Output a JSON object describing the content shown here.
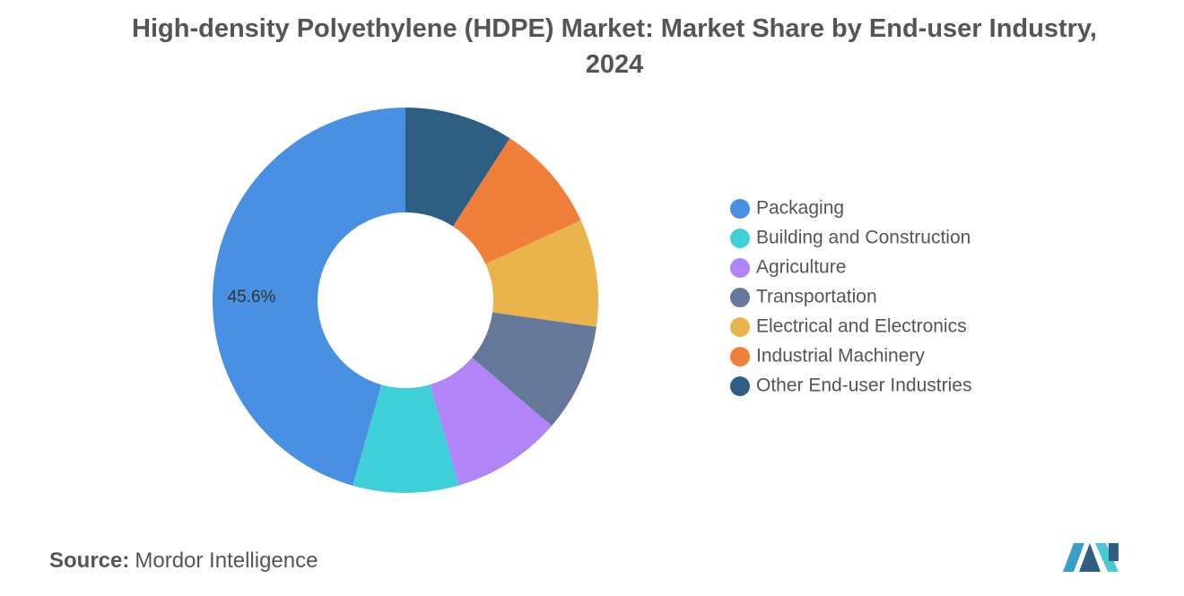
{
  "chart_data": {
    "type": "donut",
    "title": "High-density Polyethylene (HDPE) Market: Market Share by End-user Industry, 2024",
    "categories": [
      "Packaging",
      "Building and Construction",
      "Agriculture",
      "Transportation",
      "Electrical and Electronics",
      "Industrial Machinery",
      "Other End-user Industries"
    ],
    "values": [
      45.6,
      8.9,
      9.2,
      9.1,
      9.0,
      9.1,
      9.1
    ],
    "value_labels": [
      "45.6%",
      null,
      null,
      null,
      null,
      null,
      null
    ],
    "colors": [
      "#4a90e2",
      "#3ecfd8",
      "#b184f7",
      "#66789a",
      "#e9b44c",
      "#f07f3c",
      "#2e5e82"
    ],
    "legend": "right"
  },
  "source_label": "Source:",
  "source": "Mordor Intelligence"
}
